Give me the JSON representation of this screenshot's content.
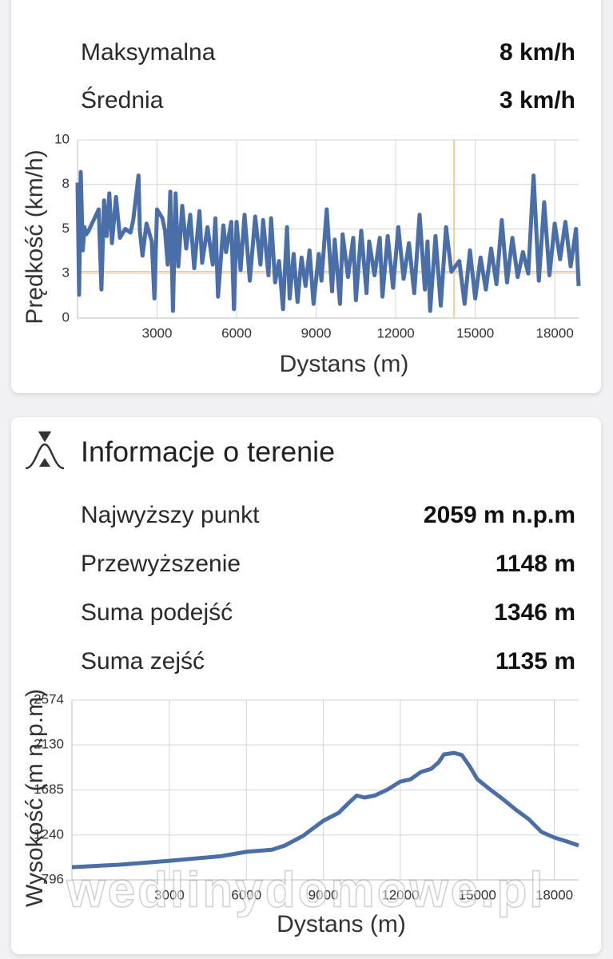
{
  "speed_stats": [
    {
      "label": "Maksymalna",
      "value": "8 km/h"
    },
    {
      "label": "Średnia",
      "value": "3 km/h"
    }
  ],
  "terrain": {
    "title": "Informacje o terenie",
    "stats": [
      {
        "label": "Najwyższy punkt",
        "value": "2059 m n.p.m"
      },
      {
        "label": "Przewyższenie",
        "value": "1148 m"
      },
      {
        "label": "Suma podejść",
        "value": "1346 m"
      },
      {
        "label": "Suma zejść",
        "value": "1135 m"
      }
    ]
  },
  "watermark": "wedlinydomowe.pl",
  "chart_data": [
    {
      "type": "line",
      "x_label": "Dystans (m)",
      "y_label": "Prędkość (km/h)",
      "color": "#4a6ea8",
      "x": [
        0,
        60,
        120,
        200,
        260,
        330,
        420,
        800,
        900,
        1000,
        1100,
        1200,
        1300,
        1450,
        1600,
        1800,
        2000,
        2100,
        2300,
        2350,
        2450,
        2600,
        2800,
        2900,
        3000,
        3200,
        3300,
        3400,
        3500,
        3600,
        3700,
        3800,
        3950,
        4100,
        4250,
        4400,
        4600,
        4700,
        4900,
        5100,
        5200,
        5300,
        5500,
        5600,
        5800,
        5900,
        6000,
        6150,
        6300,
        6500,
        6700,
        6900,
        7000,
        7200,
        7300,
        7450,
        7600,
        7750,
        7900,
        8000,
        8150,
        8300,
        8450,
        8600,
        8750,
        8900,
        9100,
        9200,
        9400,
        9600,
        9700,
        9900,
        10000,
        10200,
        10400,
        10500,
        10700,
        10900,
        11000,
        11200,
        11400,
        11500,
        11700,
        11900,
        12100,
        12300,
        12500,
        12700,
        12900,
        13100,
        13200,
        13300,
        13500,
        13700,
        13900,
        14100,
        14400,
        14600,
        14800,
        15000,
        15200,
        15400,
        15600,
        15800,
        16000,
        16200,
        16400,
        16600,
        16800,
        17000,
        17200,
        17400,
        17600,
        17800,
        18000,
        18200,
        18400,
        18600,
        18800,
        18900
      ],
      "values": [
        7.6,
        1.3,
        8.2,
        3.8,
        5.1,
        4.7,
        4.9,
        6.1,
        1.6,
        6.6,
        4.6,
        7.0,
        4.2,
        6.8,
        4.5,
        5.0,
        4.8,
        5.5,
        8.0,
        4.9,
        3.5,
        5.3,
        4.3,
        1.1,
        6.1,
        5.6,
        4.9,
        3.0,
        7.1,
        0.4,
        7.0,
        2.9,
        6.3,
        3.9,
        5.8,
        2.8,
        6.0,
        3.1,
        5.1,
        3.0,
        5.6,
        1.2,
        5.2,
        3.7,
        5.4,
        0.5,
        5.4,
        2.7,
        5.8,
        2.1,
        5.7,
        3.0,
        5.5,
        2.4,
        5.6,
        2.0,
        3.2,
        0.5,
        5.1,
        1.1,
        3.6,
        0.9,
        3.4,
        1.8,
        3.8,
        0.8,
        3.6,
        2.1,
        6.1,
        1.5,
        4.4,
        0.8,
        4.7,
        2.3,
        4.5,
        1.0,
        4.9,
        1.4,
        4.3,
        2.4,
        4.5,
        1.2,
        4.6,
        1.7,
        5.1,
        2.2,
        4.2,
        1.4,
        5.8,
        1.6,
        4.3,
        0.4,
        4.6,
        0.7,
        5.1,
        2.6,
        3.2,
        0.8,
        3.8,
        1.1,
        3.4,
        1.6,
        3.9,
        1.9,
        5.5,
        2.0,
        4.5,
        2.3,
        3.7,
        2.5,
        8.0,
        2.1,
        6.5,
        2.4,
        5.3,
        3.3,
        5.4,
        2.9,
        5.0,
        1.8
      ],
      "xlim": [
        0,
        18900
      ],
      "ylim": [
        0,
        10
      ],
      "xticks": [
        3000,
        6000,
        9000,
        12000,
        15000,
        18000
      ],
      "yticks": [
        0,
        {
          "value": 2.5,
          "label": "3"
        },
        5,
        {
          "value": 7.5,
          "label": "8"
        },
        10
      ],
      "grid": true,
      "reference_lines": {
        "y": 2.6,
        "x": 14200,
        "color": "#f0cf9c"
      }
    },
    {
      "type": "line",
      "x_label": "Dystans (m)",
      "y_label": "Wysokość (m n.p.m)",
      "color": "#4a6ea8",
      "x": [
        -800,
        1000,
        3000,
        5000,
        6000,
        7000,
        7500,
        8200,
        9000,
        9600,
        10000,
        10300,
        10600,
        11000,
        11500,
        12000,
        12400,
        12800,
        13200,
        13500,
        13700,
        14100,
        14400,
        14700,
        15000,
        15500,
        16000,
        16500,
        17000,
        17500,
        18000,
        18500,
        18950
      ],
      "values": [
        922,
        945,
        985,
        1030,
        1073,
        1095,
        1136,
        1230,
        1381,
        1460,
        1560,
        1630,
        1610,
        1630,
        1689,
        1768,
        1790,
        1863,
        1894,
        1960,
        2037,
        2052,
        2030,
        1920,
        1792,
        1690,
        1594,
        1490,
        1397,
        1270,
        1215,
        1175,
        1136
      ],
      "xlim": [
        -800,
        18950
      ],
      "ylim": [
        796,
        2574
      ],
      "xticks": [
        3000,
        6000,
        9000,
        12000,
        15000,
        18000
      ],
      "yticks": [
        796,
        1240,
        1685,
        2130,
        2574
      ],
      "grid": true
    }
  ]
}
